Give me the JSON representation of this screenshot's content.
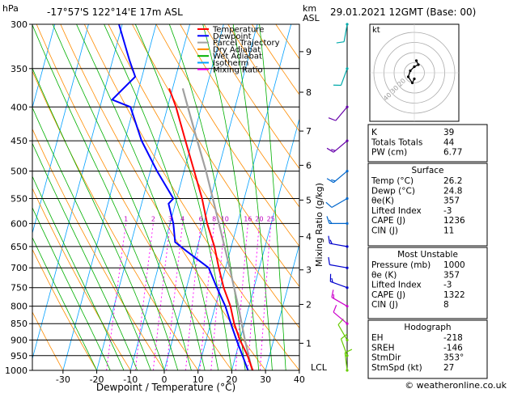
{
  "header": {
    "location": "-17°57'S  122°14'E  17m  ASL",
    "datetime": "29.01.2021  12GMT  (Base: 00)",
    "hpa_label": "hPa",
    "km_label": "km",
    "asl_label": "ASL"
  },
  "footer": {
    "copyright": "© weatheronline.co.uk"
  },
  "chart_data": {
    "type": "skew-t",
    "xlabel": "Dewpoint / Temperature (°C)",
    "ylabel": "hPa",
    "mixing_ratio_axis_label": "Mixing Ratio (g/kg)",
    "x_ticks": [
      -30,
      -20,
      -10,
      0,
      10,
      20,
      30,
      40
    ],
    "pressure_levels": [
      300,
      350,
      400,
      450,
      500,
      550,
      600,
      650,
      700,
      750,
      800,
      850,
      900,
      950,
      1000
    ],
    "altitude_km": [
      {
        "km": "1",
        "p": 910
      },
      {
        "km": "2",
        "p": 795
      },
      {
        "km": "3",
        "p": 705
      },
      {
        "km": "4",
        "p": 628
      },
      {
        "km": "5",
        "p": 553
      },
      {
        "km": "6",
        "p": 490
      },
      {
        "km": "7",
        "p": 435
      },
      {
        "km": "8",
        "p": 380
      },
      {
        "km": "9",
        "p": 330
      }
    ],
    "lcl": {
      "label": "LCL",
      "p": 995
    },
    "mixing_ratio_labels": [
      "1",
      "2",
      "3",
      "4",
      "6",
      "8",
      "10",
      "16",
      "20",
      "25"
    ],
    "mixing_ratio_values": [
      1,
      2,
      3,
      4,
      6,
      8,
      10,
      16,
      20,
      25
    ],
    "legend": [
      {
        "name": "Temperature",
        "color": "#ff0000"
      },
      {
        "name": "Dewpoint",
        "color": "#0000ff"
      },
      {
        "name": "Parcel Trajectory",
        "color": "#a0a0a0"
      },
      {
        "name": "Dry Adiabat",
        "color": "#ff8c00"
      },
      {
        "name": "Wet Adiabat",
        "color": "#00b000"
      },
      {
        "name": "Isotherm",
        "color": "#00a0ff"
      },
      {
        "name": "Mixing Ratio",
        "color": "#ff00ff"
      }
    ],
    "temperature": [
      {
        "p": 1000,
        "t": 26.2
      },
      {
        "p": 950,
        "t": 23.5
      },
      {
        "p": 900,
        "t": 20
      },
      {
        "p": 850,
        "t": 17
      },
      {
        "p": 800,
        "t": 14.5
      },
      {
        "p": 750,
        "t": 11
      },
      {
        "p": 700,
        "t": 8
      },
      {
        "p": 650,
        "t": 5
      },
      {
        "p": 600,
        "t": 1
      },
      {
        "p": 550,
        "t": -2.5
      },
      {
        "p": 500,
        "t": -7
      },
      {
        "p": 450,
        "t": -12
      },
      {
        "p": 400,
        "t": -17.5
      },
      {
        "p": 375,
        "t": -21
      }
    ],
    "dewpoint": [
      {
        "p": 1000,
        "t": 24.8
      },
      {
        "p": 950,
        "t": 22
      },
      {
        "p": 900,
        "t": 19
      },
      {
        "p": 850,
        "t": 16
      },
      {
        "p": 800,
        "t": 13
      },
      {
        "p": 750,
        "t": 9
      },
      {
        "p": 700,
        "t": 5
      },
      {
        "p": 660,
        "t": -3
      },
      {
        "p": 640,
        "t": -7
      },
      {
        "p": 600,
        "t": -9
      },
      {
        "p": 560,
        "t": -12
      },
      {
        "p": 550,
        "t": -11
      },
      {
        "p": 500,
        "t": -18
      },
      {
        "p": 450,
        "t": -25
      },
      {
        "p": 400,
        "t": -31
      },
      {
        "p": 390,
        "t": -37
      },
      {
        "p": 360,
        "t": -32
      },
      {
        "p": 340,
        "t": -35
      },
      {
        "p": 300,
        "t": -41
      }
    ],
    "parcel": [
      {
        "p": 1000,
        "t": 26.2
      },
      {
        "p": 995,
        "t": 25.8
      },
      {
        "p": 900,
        "t": 21.5
      },
      {
        "p": 800,
        "t": 16.8
      },
      {
        "p": 700,
        "t": 11.2
      },
      {
        "p": 600,
        "t": 4.5
      },
      {
        "p": 500,
        "t": -3.5
      },
      {
        "p": 450,
        "t": -8.5
      },
      {
        "p": 400,
        "t": -14
      },
      {
        "p": 375,
        "t": -17
      }
    ],
    "winds": [
      {
        "p": 1000,
        "dir": 353,
        "spd": 10
      },
      {
        "p": 950,
        "dir": 340,
        "spd": 10
      },
      {
        "p": 900,
        "dir": 330,
        "spd": 10
      },
      {
        "p": 850,
        "dir": 310,
        "spd": 10
      },
      {
        "p": 800,
        "dir": 300,
        "spd": 15
      },
      {
        "p": 750,
        "dir": 290,
        "spd": 15
      },
      {
        "p": 700,
        "dir": 280,
        "spd": 10
      },
      {
        "p": 650,
        "dir": 280,
        "spd": 15
      },
      {
        "p": 600,
        "dir": 270,
        "spd": 15
      },
      {
        "p": 550,
        "dir": 240,
        "spd": 10
      },
      {
        "p": 500,
        "dir": 230,
        "spd": 15
      },
      {
        "p": 450,
        "dir": 230,
        "spd": 15
      },
      {
        "p": 400,
        "dir": 220,
        "spd": 10
      },
      {
        "p": 350,
        "dir": 200,
        "spd": 10
      },
      {
        "p": 300,
        "dir": 190,
        "spd": 10
      }
    ]
  },
  "hodograph": {
    "label": "kt",
    "ring_labels": [
      "20",
      "30",
      "40"
    ],
    "u": [
      0,
      -1,
      -3,
      -2,
      0,
      2,
      1
    ],
    "v": [
      3,
      5,
      2,
      -1,
      -3,
      -4,
      -6
    ]
  },
  "indices": {
    "top": [
      {
        "label": "K",
        "value": "39"
      },
      {
        "label": "Totals Totals",
        "value": "44"
      },
      {
        "label": "PW (cm)",
        "value": "6.77"
      }
    ],
    "surface_title": "Surface",
    "surface": [
      {
        "label": "Temp (°C)",
        "value": "26.2"
      },
      {
        "label": "Dewp (°C)",
        "value": "24.8"
      },
      {
        "label": "θe(K)",
        "value": "357"
      },
      {
        "label": "Lifted Index",
        "value": "-3"
      },
      {
        "label": "CAPE (J)",
        "value": "1236"
      },
      {
        "label": "CIN (J)",
        "value": "11"
      }
    ],
    "mu_title": "Most Unstable",
    "mu": [
      {
        "label": "Pressure (mb)",
        "value": "1000"
      },
      {
        "label": "θe (K)",
        "value": "357"
      },
      {
        "label": "Lifted Index",
        "value": "-3"
      },
      {
        "label": "CAPE (J)",
        "value": "1322"
      },
      {
        "label": "CIN (J)",
        "value": "8"
      }
    ],
    "hodo_title": "Hodograph",
    "hodo": [
      {
        "label": "EH",
        "value": "-218"
      },
      {
        "label": "SREH",
        "value": "-146"
      },
      {
        "label": "StmDir",
        "value": "353°"
      },
      {
        "label": "StmSpd (kt)",
        "value": "27"
      }
    ]
  }
}
